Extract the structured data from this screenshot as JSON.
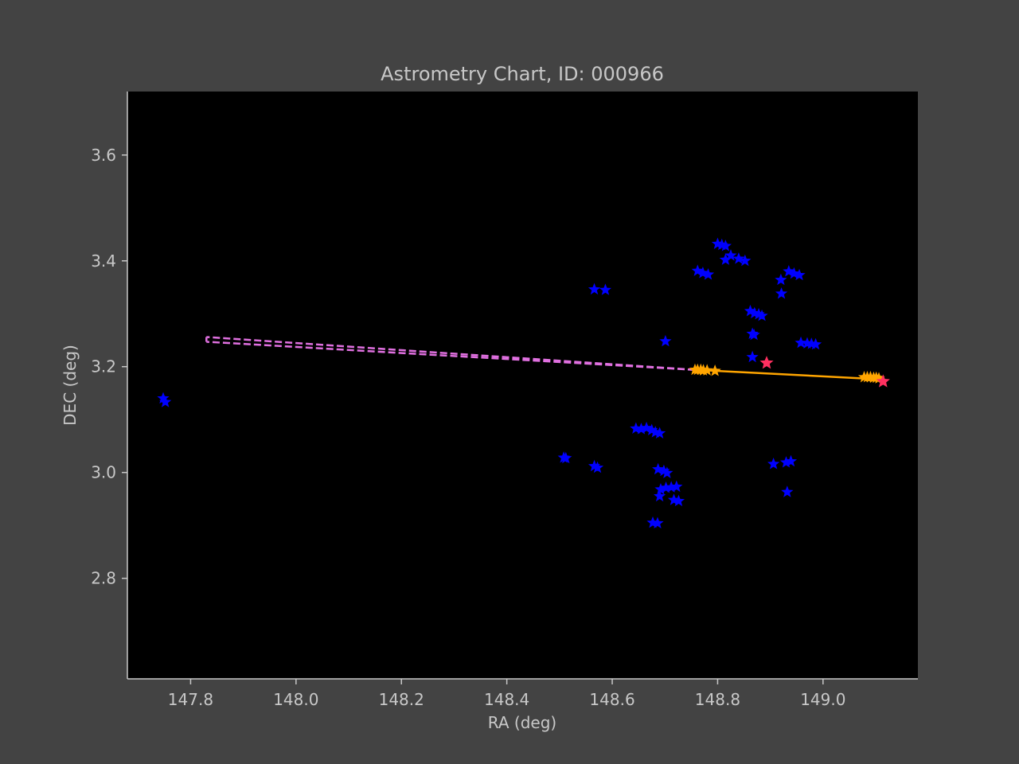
{
  "chart_data": {
    "type": "scatter",
    "title": "Astrometry Chart, ID: 000966",
    "xlabel": "RA (deg)",
    "ylabel": "DEC (deg)",
    "xlim": [
      147.68,
      149.18
    ],
    "ylim": [
      2.61,
      3.72
    ],
    "xticks": [
      147.8,
      148.0,
      148.2,
      148.4,
      148.6,
      148.8,
      149.0
    ],
    "xtick_labels": [
      "147.8",
      "148.0",
      "148.2",
      "148.4",
      "148.6",
      "148.8",
      "149.0"
    ],
    "yticks": [
      2.8,
      3.0,
      3.2,
      3.4,
      3.6
    ],
    "ytick_labels": [
      "2.8",
      "3.0",
      "3.2",
      "3.4",
      "3.6"
    ],
    "grid": false,
    "legend": "none",
    "colors": {
      "background": "#434343",
      "plot_area": "#000000",
      "text": "#c8c8c8",
      "field_stars": "#0000ff",
      "track": "#ffa500",
      "extrapolated_track": "#e070e0",
      "highlight": "#ff3060"
    },
    "series": [
      {
        "marker": "star-icon",
        "color": "#0000ff",
        "points": [
          [
            147.748,
            3.14
          ],
          [
            147.752,
            3.133
          ],
          [
            148.508,
            3.028
          ],
          [
            148.512,
            3.027
          ],
          [
            148.566,
            3.012
          ],
          [
            148.572,
            3.009
          ],
          [
            148.566,
            3.346
          ],
          [
            148.587,
            3.345
          ],
          [
            148.645,
            3.083
          ],
          [
            148.655,
            3.082
          ],
          [
            148.665,
            3.084
          ],
          [
            148.675,
            3.08
          ],
          [
            148.682,
            3.076
          ],
          [
            148.69,
            3.074
          ],
          [
            148.687,
            3.006
          ],
          [
            148.698,
            3.003
          ],
          [
            148.704,
            2.999
          ],
          [
            148.692,
            2.968
          ],
          [
            148.702,
            2.971
          ],
          [
            148.712,
            2.972
          ],
          [
            148.722,
            2.973
          ],
          [
            148.69,
            2.955
          ],
          [
            148.717,
            2.948
          ],
          [
            148.726,
            2.946
          ],
          [
            148.677,
            2.905
          ],
          [
            148.686,
            2.904
          ],
          [
            148.701,
            3.248
          ],
          [
            148.762,
            3.381
          ],
          [
            148.772,
            3.377
          ],
          [
            148.782,
            3.374
          ],
          [
            148.8,
            3.432
          ],
          [
            148.808,
            3.43
          ],
          [
            148.815,
            3.428
          ],
          [
            148.815,
            3.402
          ],
          [
            148.825,
            3.41
          ],
          [
            148.84,
            3.404
          ],
          [
            148.852,
            3.4
          ],
          [
            148.862,
            3.305
          ],
          [
            148.87,
            3.301
          ],
          [
            148.878,
            3.299
          ],
          [
            148.884,
            3.296
          ],
          [
            148.866,
            3.262
          ],
          [
            148.869,
            3.26
          ],
          [
            148.866,
            3.218
          ],
          [
            148.92,
            3.364
          ],
          [
            148.921,
            3.338
          ],
          [
            148.935,
            3.38
          ],
          [
            148.945,
            3.376
          ],
          [
            148.955,
            3.373
          ],
          [
            148.958,
            3.245
          ],
          [
            148.97,
            3.244
          ],
          [
            148.978,
            3.243
          ],
          [
            148.986,
            3.242
          ],
          [
            148.906,
            3.016
          ],
          [
            148.93,
            3.019
          ],
          [
            148.939,
            3.021
          ],
          [
            148.932,
            2.963
          ]
        ]
      },
      {
        "marker": "line",
        "style": "solid",
        "color": "#ffa500",
        "points": [
          [
            148.757,
            3.194
          ],
          [
            149.112,
            3.176
          ]
        ]
      },
      {
        "marker": "star-icon",
        "color": "#ffa500",
        "points": [
          [
            148.757,
            3.194
          ],
          [
            148.762,
            3.194
          ],
          [
            148.768,
            3.194
          ],
          [
            148.773,
            3.193
          ],
          [
            148.78,
            3.193
          ],
          [
            148.795,
            3.192
          ],
          [
            149.078,
            3.18
          ],
          [
            149.084,
            3.18
          ],
          [
            149.09,
            3.18
          ],
          [
            149.096,
            3.179
          ],
          [
            149.101,
            3.179
          ],
          [
            149.106,
            3.178
          ]
        ]
      },
      {
        "marker": "star-icon",
        "color": "#ff3060",
        "points": [
          [
            148.893,
            3.207
          ],
          [
            149.114,
            3.172
          ]
        ]
      },
      {
        "marker": "line",
        "style": "dashed",
        "color": "#e070e0",
        "points": [
          [
            148.757,
            3.194
          ],
          [
            147.83,
            3.256
          ]
        ]
      },
      {
        "marker": "line",
        "style": "dashed",
        "color": "#e070e0",
        "points": [
          [
            148.757,
            3.194
          ],
          [
            147.83,
            3.247
          ]
        ]
      },
      {
        "marker": "line",
        "style": "dashed",
        "color": "#e070e0",
        "points": [
          [
            147.83,
            3.256
          ],
          [
            147.83,
            3.247
          ]
        ]
      }
    ]
  }
}
